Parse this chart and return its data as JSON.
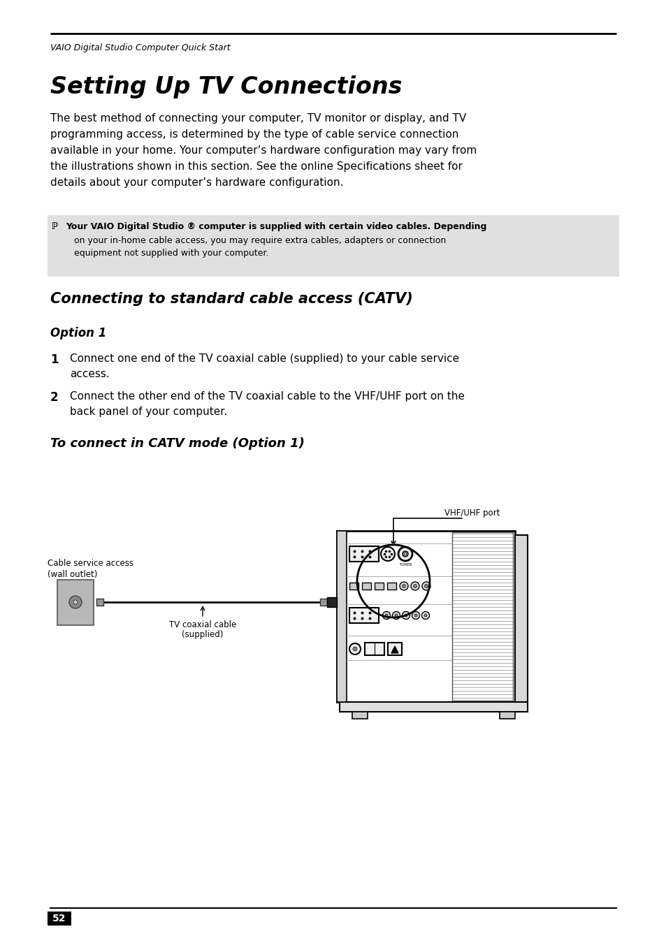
{
  "header_text": "VAIO Digital Studio Computer Quick Start",
  "title": "Setting Up TV Connections",
  "body_text_lines": [
    "The best method of connecting your computer, TV monitor or display, and TV",
    "programming access, is determined by the type of cable service connection",
    "available in your home. Your computer’s hardware configuration may vary from",
    "the illustrations shown in this section. See the online Specifications sheet for",
    "details about your computer’s hardware configuration."
  ],
  "note_text_bold": "Your VAIO Digital Studio ® computer is supplied with certain video cables. Depending",
  "note_text_line2": "on your in-home cable access, you may require extra cables, adapters or connection",
  "note_text_line3": "equipment not supplied with your computer.",
  "section_title": "Connecting to standard cable access (CATV)",
  "option_title": "Option 1",
  "step1_lines": [
    "Connect one end of the TV coaxial cable (supplied) to your cable service",
    "access."
  ],
  "step2_lines": [
    "Connect the other end of the TV coaxial cable to the VHF/UHF port on the",
    "back panel of your computer."
  ],
  "diagram_title": "To connect in CATV mode (Option 1)",
  "label_wall_line1": "Cable service access",
  "label_wall_line2": "(wall outlet)",
  "label_cable_line1": "TV coaxial cable",
  "label_cable_line2": "(supplied)",
  "label_port": "VHF/UHF port",
  "page_number": "52",
  "bg_color": "#ffffff",
  "note_bg_color": "#e0e0e0",
  "text_color": "#000000"
}
